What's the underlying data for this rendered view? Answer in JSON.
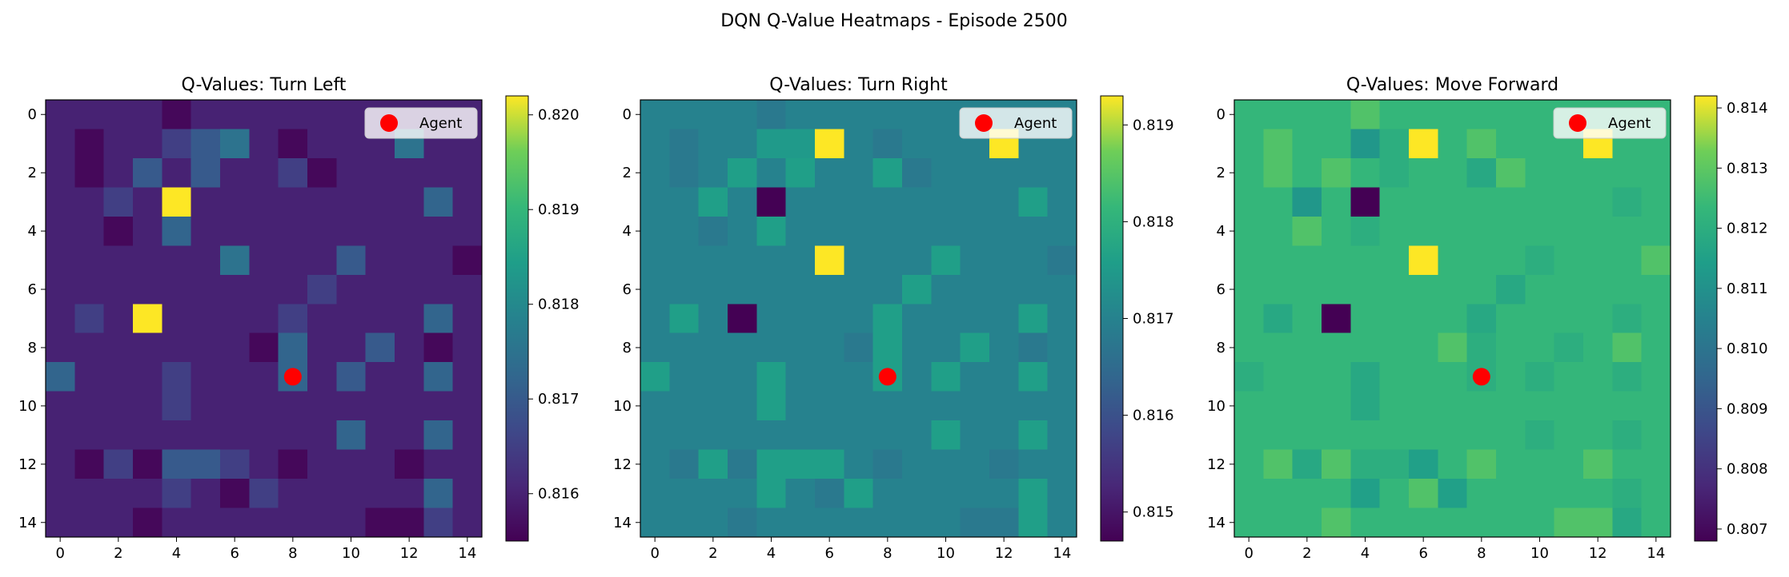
{
  "figure": {
    "suptitle": "DQN Q-Value Heatmaps - Episode 2500"
  },
  "legend": {
    "label": "Agent",
    "marker_color": "#ff0000"
  },
  "colormap": "viridis",
  "chart_data": [
    {
      "type": "heatmap",
      "title": "Q-Values: Turn Left",
      "xlabel": "",
      "ylabel": "",
      "xticks": [
        0,
        2,
        4,
        6,
        8,
        10,
        12,
        14
      ],
      "yticks": [
        0,
        2,
        4,
        6,
        8,
        10,
        12,
        14
      ],
      "color_range": [
        0.8155,
        0.8202
      ],
      "colorbar_ticks": [
        "0.816",
        "0.817",
        "0.818",
        "0.819",
        "0.820"
      ],
      "agent": {
        "x": 8,
        "y": 9
      },
      "values": [
        [
          0.816,
          0.816,
          0.816,
          0.816,
          0.8156,
          0.816,
          0.816,
          0.816,
          0.816,
          0.816,
          0.816,
          0.816,
          0.816,
          0.816,
          0.816
        ],
        [
          0.816,
          0.8156,
          0.816,
          0.816,
          0.8165,
          0.817,
          0.8175,
          0.816,
          0.8156,
          0.816,
          0.816,
          0.816,
          0.8175,
          0.816,
          0.816
        ],
        [
          0.816,
          0.8156,
          0.816,
          0.817,
          0.816,
          0.817,
          0.816,
          0.816,
          0.8165,
          0.8156,
          0.816,
          0.816,
          0.816,
          0.816,
          0.816
        ],
        [
          0.816,
          0.816,
          0.8165,
          0.816,
          0.8202,
          0.816,
          0.816,
          0.816,
          0.816,
          0.816,
          0.816,
          0.816,
          0.816,
          0.8172,
          0.816
        ],
        [
          0.816,
          0.816,
          0.8156,
          0.816,
          0.8172,
          0.816,
          0.816,
          0.816,
          0.816,
          0.816,
          0.816,
          0.816,
          0.816,
          0.816,
          0.816
        ],
        [
          0.816,
          0.816,
          0.816,
          0.816,
          0.816,
          0.816,
          0.8175,
          0.816,
          0.816,
          0.816,
          0.817,
          0.816,
          0.816,
          0.816,
          0.8156
        ],
        [
          0.816,
          0.816,
          0.816,
          0.816,
          0.816,
          0.816,
          0.816,
          0.816,
          0.816,
          0.8165,
          0.816,
          0.816,
          0.816,
          0.816,
          0.816
        ],
        [
          0.816,
          0.8165,
          0.816,
          0.8202,
          0.816,
          0.816,
          0.816,
          0.816,
          0.8165,
          0.816,
          0.816,
          0.816,
          0.816,
          0.8172,
          0.816
        ],
        [
          0.816,
          0.816,
          0.816,
          0.816,
          0.816,
          0.816,
          0.816,
          0.8156,
          0.8172,
          0.816,
          0.816,
          0.817,
          0.816,
          0.8156,
          0.816
        ],
        [
          0.8172,
          0.816,
          0.816,
          0.816,
          0.8165,
          0.816,
          0.816,
          0.816,
          0.8172,
          0.816,
          0.817,
          0.816,
          0.816,
          0.8172,
          0.816
        ],
        [
          0.816,
          0.816,
          0.816,
          0.816,
          0.8165,
          0.816,
          0.816,
          0.816,
          0.816,
          0.816,
          0.816,
          0.816,
          0.816,
          0.816,
          0.816
        ],
        [
          0.816,
          0.816,
          0.816,
          0.816,
          0.816,
          0.816,
          0.816,
          0.816,
          0.816,
          0.816,
          0.8172,
          0.816,
          0.816,
          0.8172,
          0.816
        ],
        [
          0.816,
          0.8156,
          0.8165,
          0.8156,
          0.817,
          0.817,
          0.8165,
          0.816,
          0.8156,
          0.816,
          0.816,
          0.816,
          0.8156,
          0.816,
          0.816
        ],
        [
          0.816,
          0.816,
          0.816,
          0.816,
          0.8165,
          0.816,
          0.8156,
          0.8165,
          0.816,
          0.816,
          0.816,
          0.816,
          0.816,
          0.8172,
          0.816
        ],
        [
          0.816,
          0.816,
          0.816,
          0.8156,
          0.816,
          0.816,
          0.816,
          0.816,
          0.816,
          0.816,
          0.816,
          0.8156,
          0.8156,
          0.8165,
          0.816
        ]
      ]
    },
    {
      "type": "heatmap",
      "title": "Q-Values: Turn Right",
      "xlabel": "",
      "ylabel": "",
      "xticks": [
        0,
        2,
        4,
        6,
        8,
        10,
        12,
        14
      ],
      "yticks": [
        0,
        2,
        4,
        6,
        8,
        10,
        12,
        14
      ],
      "color_range": [
        0.8147,
        0.8193
      ],
      "colorbar_ticks": [
        "0.815",
        "0.816",
        "0.817",
        "0.818",
        "0.819"
      ],
      "agent": {
        "x": 8,
        "y": 9
      },
      "values": [
        [
          0.817,
          0.817,
          0.817,
          0.817,
          0.8168,
          0.817,
          0.817,
          0.817,
          0.817,
          0.817,
          0.817,
          0.817,
          0.817,
          0.817,
          0.817
        ],
        [
          0.817,
          0.8168,
          0.817,
          0.817,
          0.8175,
          0.8175,
          0.8193,
          0.817,
          0.8168,
          0.817,
          0.817,
          0.817,
          0.8193,
          0.817,
          0.817
        ],
        [
          0.817,
          0.8168,
          0.817,
          0.8176,
          0.817,
          0.8176,
          0.817,
          0.817,
          0.8176,
          0.8168,
          0.817,
          0.817,
          0.817,
          0.817,
          0.817
        ],
        [
          0.817,
          0.817,
          0.8176,
          0.817,
          0.8147,
          0.817,
          0.817,
          0.817,
          0.817,
          0.817,
          0.817,
          0.817,
          0.817,
          0.8176,
          0.817
        ],
        [
          0.817,
          0.817,
          0.8168,
          0.817,
          0.8176,
          0.817,
          0.817,
          0.817,
          0.817,
          0.817,
          0.817,
          0.817,
          0.817,
          0.817,
          0.817
        ],
        [
          0.817,
          0.817,
          0.817,
          0.817,
          0.817,
          0.817,
          0.8193,
          0.817,
          0.817,
          0.817,
          0.8176,
          0.817,
          0.817,
          0.817,
          0.8168
        ],
        [
          0.817,
          0.817,
          0.817,
          0.817,
          0.817,
          0.817,
          0.817,
          0.817,
          0.817,
          0.8176,
          0.817,
          0.817,
          0.817,
          0.817,
          0.817
        ],
        [
          0.817,
          0.8176,
          0.817,
          0.8147,
          0.817,
          0.817,
          0.817,
          0.817,
          0.8176,
          0.817,
          0.817,
          0.817,
          0.817,
          0.8176,
          0.817
        ],
        [
          0.817,
          0.817,
          0.817,
          0.817,
          0.817,
          0.817,
          0.817,
          0.8168,
          0.8176,
          0.817,
          0.817,
          0.8176,
          0.817,
          0.8168,
          0.817
        ],
        [
          0.8176,
          0.817,
          0.817,
          0.817,
          0.8176,
          0.817,
          0.817,
          0.817,
          0.8176,
          0.817,
          0.8176,
          0.817,
          0.817,
          0.8176,
          0.817
        ],
        [
          0.817,
          0.817,
          0.817,
          0.817,
          0.8176,
          0.817,
          0.817,
          0.817,
          0.817,
          0.817,
          0.817,
          0.817,
          0.817,
          0.817,
          0.817
        ],
        [
          0.817,
          0.817,
          0.817,
          0.817,
          0.817,
          0.817,
          0.817,
          0.817,
          0.817,
          0.817,
          0.8176,
          0.817,
          0.817,
          0.8176,
          0.817
        ],
        [
          0.817,
          0.8168,
          0.8176,
          0.8168,
          0.8176,
          0.8176,
          0.8176,
          0.817,
          0.8168,
          0.817,
          0.817,
          0.817,
          0.8168,
          0.817,
          0.817
        ],
        [
          0.817,
          0.817,
          0.817,
          0.817,
          0.8176,
          0.817,
          0.8168,
          0.8176,
          0.817,
          0.817,
          0.817,
          0.817,
          0.817,
          0.8176,
          0.817
        ],
        [
          0.817,
          0.817,
          0.817,
          0.8168,
          0.817,
          0.817,
          0.817,
          0.817,
          0.817,
          0.817,
          0.817,
          0.8168,
          0.8168,
          0.8176,
          0.817
        ]
      ]
    },
    {
      "type": "heatmap",
      "title": "Q-Values: Move Forward",
      "xlabel": "",
      "ylabel": "",
      "xticks": [
        0,
        2,
        4,
        6,
        8,
        10,
        12,
        14
      ],
      "yticks": [
        0,
        2,
        4,
        6,
        8,
        10,
        12,
        14
      ],
      "color_range": [
        0.8068,
        0.8142
      ],
      "colorbar_ticks": [
        "0.807",
        "0.808",
        "0.809",
        "0.810",
        "0.811",
        "0.812",
        "0.813",
        "0.814"
      ],
      "agent": {
        "x": 8,
        "y": 9
      },
      "values": [
        [
          0.8123,
          0.8123,
          0.8123,
          0.8123,
          0.8128,
          0.8123,
          0.8123,
          0.8123,
          0.8123,
          0.8123,
          0.8123,
          0.8123,
          0.8123,
          0.8123,
          0.8123
        ],
        [
          0.8123,
          0.8128,
          0.8123,
          0.8123,
          0.8112,
          0.812,
          0.8142,
          0.8123,
          0.8128,
          0.8123,
          0.8123,
          0.8123,
          0.8142,
          0.8123,
          0.8123
        ],
        [
          0.8123,
          0.8128,
          0.8123,
          0.8128,
          0.8123,
          0.812,
          0.8123,
          0.8123,
          0.8118,
          0.8128,
          0.8123,
          0.8123,
          0.8123,
          0.8123,
          0.8123
        ],
        [
          0.8123,
          0.8123,
          0.8112,
          0.8123,
          0.8068,
          0.8123,
          0.8123,
          0.8123,
          0.8123,
          0.8123,
          0.8123,
          0.8123,
          0.8123,
          0.812,
          0.8123
        ],
        [
          0.8123,
          0.8123,
          0.8128,
          0.8123,
          0.812,
          0.8123,
          0.8123,
          0.8123,
          0.8123,
          0.8123,
          0.8123,
          0.8123,
          0.8123,
          0.8123,
          0.8123
        ],
        [
          0.8123,
          0.8123,
          0.8123,
          0.8123,
          0.8123,
          0.8123,
          0.8142,
          0.8123,
          0.8123,
          0.8123,
          0.812,
          0.8123,
          0.8123,
          0.8123,
          0.8128
        ],
        [
          0.8123,
          0.8123,
          0.8123,
          0.8123,
          0.8123,
          0.8123,
          0.8123,
          0.8123,
          0.8123,
          0.8118,
          0.8123,
          0.8123,
          0.8123,
          0.8123,
          0.8123
        ],
        [
          0.8123,
          0.8118,
          0.8123,
          0.8068,
          0.8123,
          0.8123,
          0.8123,
          0.8123,
          0.8118,
          0.8123,
          0.8123,
          0.8123,
          0.8123,
          0.812,
          0.8123
        ],
        [
          0.8123,
          0.8123,
          0.8123,
          0.8123,
          0.8123,
          0.8123,
          0.8123,
          0.8128,
          0.812,
          0.8123,
          0.8123,
          0.812,
          0.8123,
          0.8128,
          0.8123
        ],
        [
          0.812,
          0.8123,
          0.8123,
          0.8123,
          0.8118,
          0.8123,
          0.8123,
          0.8123,
          0.812,
          0.8123,
          0.812,
          0.8123,
          0.8123,
          0.812,
          0.8123
        ],
        [
          0.8123,
          0.8123,
          0.8123,
          0.8123,
          0.8118,
          0.8123,
          0.8123,
          0.8123,
          0.8123,
          0.8123,
          0.8123,
          0.8123,
          0.8123,
          0.8123,
          0.8123
        ],
        [
          0.8123,
          0.8123,
          0.8123,
          0.8123,
          0.8123,
          0.8123,
          0.8123,
          0.8123,
          0.8123,
          0.8123,
          0.812,
          0.8123,
          0.8123,
          0.812,
          0.8123
        ],
        [
          0.8123,
          0.8128,
          0.8118,
          0.8128,
          0.812,
          0.812,
          0.8115,
          0.8123,
          0.8128,
          0.8123,
          0.8123,
          0.8123,
          0.8128,
          0.8123,
          0.8123
        ],
        [
          0.8123,
          0.8123,
          0.8123,
          0.8123,
          0.8115,
          0.8123,
          0.8128,
          0.8115,
          0.8123,
          0.8123,
          0.8123,
          0.8123,
          0.8123,
          0.812,
          0.8123
        ],
        [
          0.8123,
          0.8123,
          0.8123,
          0.8128,
          0.8123,
          0.8123,
          0.8123,
          0.8123,
          0.8123,
          0.8123,
          0.8123,
          0.8128,
          0.8128,
          0.8118,
          0.8123
        ]
      ]
    }
  ]
}
